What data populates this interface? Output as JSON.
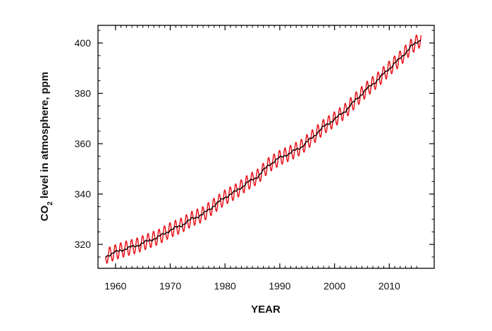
{
  "chart_data": {
    "type": "line",
    "title": "",
    "xlabel": "YEAR",
    "ylabel": {
      "prefix": "CO",
      "subscript": "2",
      "suffix": " level in atmosphere, ppm"
    },
    "xlim": [
      1956.8,
      2018.2
    ],
    "ylim": [
      310.5,
      407
    ],
    "x_ticks": [
      1960,
      1970,
      1980,
      1990,
      2000,
      2010
    ],
    "x_tick_labels": [
      "1960",
      "1970",
      "1980",
      "1990",
      "2000",
      "2010"
    ],
    "y_ticks": [
      320,
      340,
      360,
      380,
      400
    ],
    "y_tick_labels": [
      "320",
      "340",
      "360",
      "380",
      "400"
    ],
    "grid": false,
    "legend": "none",
    "seasonal_amplitude_ppm": 3.0,
    "series": [
      {
        "style": "seasonal monthly",
        "color": "#e8141b",
        "x": [
          1958.2,
          1960,
          1962,
          1964,
          1966,
          1968,
          1970,
          1972,
          1974,
          1976,
          1978,
          1980,
          1982,
          1984,
          1986,
          1988,
          1990,
          1992,
          1994,
          1996,
          1998,
          2000,
          2002,
          2004,
          2006,
          2008,
          2010,
          2012,
          2014,
          2015.8
        ],
        "y": [
          315.3,
          316.9,
          318.4,
          319.6,
          321.4,
          323.1,
          325.7,
          327.5,
          330.2,
          332.0,
          335.4,
          338.7,
          341.1,
          344.4,
          347.0,
          351.6,
          354.4,
          356.4,
          358.8,
          362.6,
          366.7,
          369.7,
          373.1,
          377.7,
          381.9,
          385.6,
          389.9,
          393.9,
          398.6,
          401.5
        ]
      },
      {
        "style": "seasonally adjusted",
        "color": "#000000",
        "x": [
          1958.2,
          1960,
          1962,
          1964,
          1966,
          1968,
          1970,
          1972,
          1974,
          1976,
          1978,
          1980,
          1982,
          1984,
          1986,
          1988,
          1990,
          1992,
          1994,
          1996,
          1998,
          2000,
          2002,
          2004,
          2006,
          2008,
          2010,
          2012,
          2014,
          2015.8
        ],
        "y": [
          315.3,
          316.9,
          318.4,
          319.6,
          321.4,
          323.1,
          325.7,
          327.5,
          330.2,
          332.0,
          335.4,
          338.7,
          341.1,
          344.4,
          347.0,
          351.6,
          354.4,
          356.4,
          358.8,
          362.6,
          366.7,
          369.7,
          373.1,
          377.7,
          381.9,
          385.6,
          389.9,
          393.9,
          398.6,
          401.5
        ]
      }
    ]
  }
}
